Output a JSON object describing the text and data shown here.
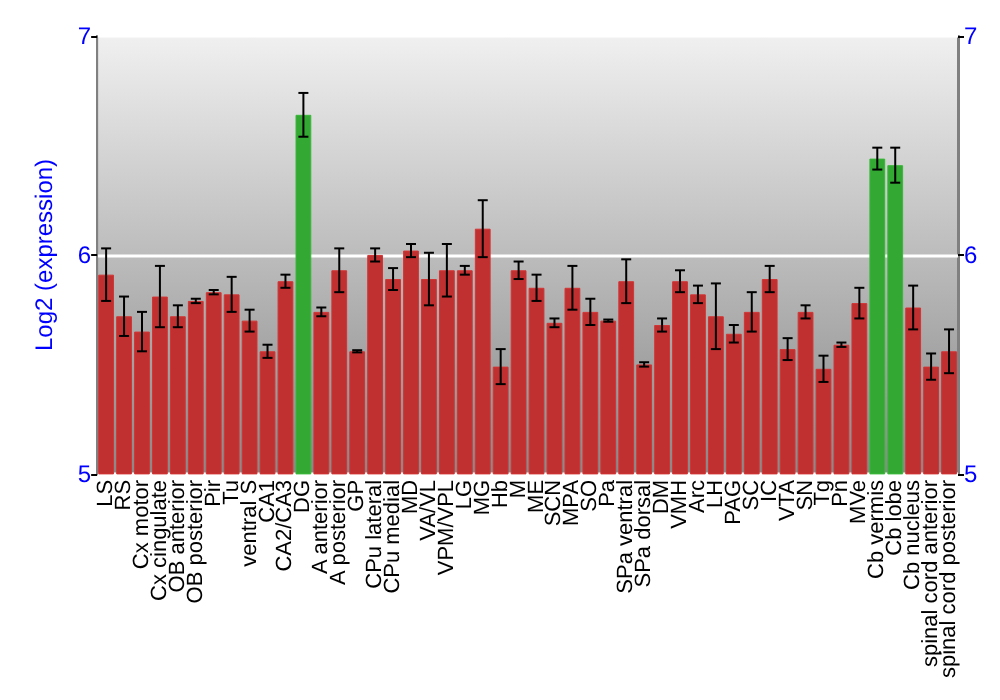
{
  "chart_data": {
    "type": "bar",
    "ylabel": "Log2 (expression)",
    "categories": [
      "LS",
      "RS",
      "Cx motor",
      "Cx cingulate",
      "OB anterior",
      "OB posterior",
      "Pir",
      "Tu",
      "ventral S",
      "CA1",
      "CA2/CA3",
      "DG",
      "A anterior",
      "A posterior",
      "GP",
      "CPu lateral",
      "CPu medial",
      "MD",
      "VA/VL",
      "VPM/VPL",
      "LG",
      "MG",
      "Hb",
      "M",
      "ME",
      "SCN",
      "MPA",
      "SO",
      "Pa",
      "SPa ventral",
      "SPa dorsal",
      "DM",
      "VMH",
      "Arc",
      "LH",
      "PAG",
      "SC",
      "IC",
      "VTA",
      "SN",
      "Tg",
      "Pn",
      "MVe",
      "Cb vermis",
      "Cb lobe",
      "Cb nucleus",
      "spinal cord anterior",
      "spinal cord posterior"
    ],
    "values": [
      5.91,
      5.72,
      5.65,
      5.81,
      5.72,
      5.79,
      5.83,
      5.82,
      5.7,
      5.56,
      5.88,
      6.64,
      5.74,
      5.93,
      5.56,
      6.0,
      5.89,
      6.02,
      5.89,
      5.93,
      5.93,
      6.12,
      5.49,
      5.93,
      5.85,
      5.69,
      5.85,
      5.74,
      5.7,
      5.88,
      5.5,
      5.68,
      5.88,
      5.82,
      5.72,
      5.64,
      5.74,
      5.89,
      5.57,
      5.74,
      5.48,
      5.59,
      5.78,
      6.44,
      6.41,
      5.76,
      5.49,
      5.56
    ],
    "errors": [
      0.12,
      0.09,
      0.09,
      0.14,
      0.05,
      0.01,
      0.01,
      0.08,
      0.05,
      0.03,
      0.03,
      0.1,
      0.02,
      0.1,
      0.005,
      0.03,
      0.05,
      0.03,
      0.12,
      0.12,
      0.02,
      0.13,
      0.08,
      0.04,
      0.06,
      0.02,
      0.1,
      0.06,
      0.005,
      0.1,
      0.01,
      0.03,
      0.05,
      0.04,
      0.15,
      0.04,
      0.09,
      0.06,
      0.05,
      0.03,
      0.06,
      0.01,
      0.07,
      0.05,
      0.08,
      0.1,
      0.06,
      0.1
    ],
    "colors": [
      "#c03030",
      "#c03030",
      "#c03030",
      "#c03030",
      "#c03030",
      "#c03030",
      "#c03030",
      "#c03030",
      "#c03030",
      "#c03030",
      "#c03030",
      "#33a833",
      "#c03030",
      "#c03030",
      "#c03030",
      "#c03030",
      "#c03030",
      "#c03030",
      "#c03030",
      "#c03030",
      "#c03030",
      "#c03030",
      "#c03030",
      "#c03030",
      "#c03030",
      "#c03030",
      "#c03030",
      "#c03030",
      "#c03030",
      "#c03030",
      "#c03030",
      "#c03030",
      "#c03030",
      "#c03030",
      "#c03030",
      "#c03030",
      "#c03030",
      "#c03030",
      "#c03030",
      "#c03030",
      "#c03030",
      "#c03030",
      "#c03030",
      "#33a833",
      "#33a833",
      "#c03030",
      "#c03030",
      "#c03030"
    ],
    "ylim": [
      5,
      7
    ],
    "yticks": [
      5,
      6,
      7
    ],
    "y2lim": [
      5,
      7
    ],
    "y2ticks": [
      5,
      6,
      7
    ],
    "grid": "y"
  }
}
